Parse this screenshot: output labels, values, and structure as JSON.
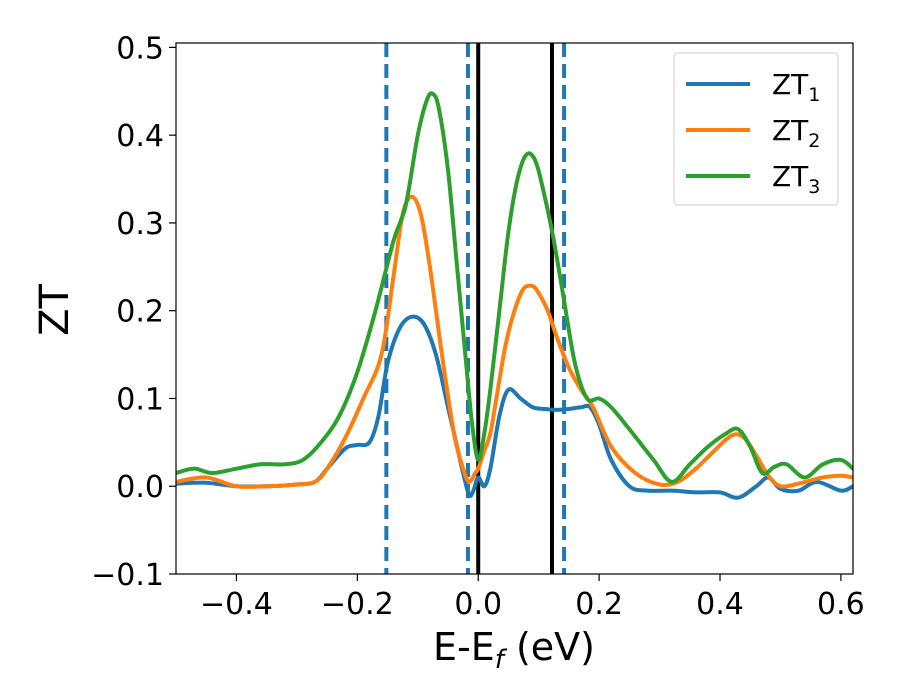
{
  "chart_data": {
    "type": "line",
    "xlabel_main": "E-E",
    "xlabel_sub": "f",
    "xlabel_tail": " (eV)",
    "ylabel": "ZT",
    "xlim": [
      -0.5,
      0.62
    ],
    "ylim": [
      -0.1,
      0.505
    ],
    "xticks": [
      -0.4,
      -0.2,
      0.0,
      0.2,
      0.4,
      0.6
    ],
    "xtick_labels": [
      "−0.4",
      "−0.2",
      "0.0",
      "0.2",
      "0.4",
      "0.6"
    ],
    "yticks": [
      -0.1,
      0.0,
      0.1,
      0.2,
      0.3,
      0.4,
      0.5
    ],
    "ytick_labels": [
      "−0.1",
      "0.0",
      "0.1",
      "0.2",
      "0.3",
      "0.4",
      "0.5"
    ],
    "grid": false,
    "legend_position": "top-right",
    "vertical_lines": [
      {
        "x": -0.152,
        "style": "dashed",
        "color": "#1f77b4"
      },
      {
        "x": -0.017,
        "style": "dashed",
        "color": "#1f77b4"
      },
      {
        "x": 0.142,
        "style": "dashed",
        "color": "#1f77b4"
      },
      {
        "x": 0.0,
        "style": "solid",
        "color": "#000000"
      },
      {
        "x": 0.122,
        "style": "solid",
        "color": "#000000"
      }
    ],
    "series": [
      {
        "name_main": "ZT",
        "name_sub": "1",
        "color": "#1f77b4",
        "x": [
          -0.5,
          -0.45,
          -0.4,
          -0.35,
          -0.3,
          -0.27,
          -0.25,
          -0.22,
          -0.2,
          -0.18,
          -0.165,
          -0.15,
          -0.13,
          -0.11,
          -0.09,
          -0.07,
          -0.05,
          -0.035,
          -0.025,
          -0.015,
          -0.008,
          0.0,
          0.01,
          0.02,
          0.035,
          0.05,
          0.07,
          0.09,
          0.11,
          0.13,
          0.15,
          0.17,
          0.185,
          0.2,
          0.22,
          0.25,
          0.28,
          0.32,
          0.36,
          0.4,
          0.43,
          0.46,
          0.48,
          0.5,
          0.53,
          0.56,
          0.6,
          0.62
        ],
        "y": [
          0.003,
          0.004,
          0.0,
          0.0,
          0.002,
          0.005,
          0.02,
          0.043,
          0.047,
          0.05,
          0.08,
          0.14,
          0.18,
          0.193,
          0.185,
          0.15,
          0.09,
          0.045,
          0.015,
          -0.01,
          -0.005,
          0.01,
          0.0,
          0.02,
          0.08,
          0.11,
          0.1,
          0.09,
          0.088,
          0.087,
          0.088,
          0.09,
          0.09,
          0.07,
          0.03,
          0.0,
          -0.005,
          -0.005,
          -0.007,
          -0.007,
          -0.013,
          0.0,
          0.01,
          -0.003,
          -0.005,
          0.005,
          -0.005,
          0.0
        ]
      },
      {
        "name_main": "ZT",
        "name_sub": "2",
        "color": "#ff7f0e",
        "x": [
          -0.5,
          -0.45,
          -0.4,
          -0.35,
          -0.3,
          -0.27,
          -0.25,
          -0.22,
          -0.19,
          -0.16,
          -0.14,
          -0.125,
          -0.11,
          -0.095,
          -0.08,
          -0.06,
          -0.04,
          -0.025,
          -0.015,
          -0.005,
          0.0,
          0.01,
          0.02,
          0.03,
          0.045,
          0.06,
          0.075,
          0.09,
          0.1,
          0.115,
          0.13,
          0.15,
          0.17,
          0.19,
          0.22,
          0.26,
          0.3,
          0.33,
          0.36,
          0.39,
          0.42,
          0.44,
          0.46,
          0.48,
          0.5,
          0.53,
          0.57,
          0.6,
          0.62
        ],
        "y": [
          0.005,
          0.01,
          0.0,
          0.0,
          0.002,
          0.005,
          0.02,
          0.055,
          0.1,
          0.15,
          0.24,
          0.31,
          0.33,
          0.31,
          0.25,
          0.15,
          0.06,
          0.02,
          0.005,
          0.015,
          0.02,
          0.04,
          0.06,
          0.1,
          0.16,
          0.2,
          0.225,
          0.228,
          0.22,
          0.2,
          0.17,
          0.135,
          0.11,
          0.09,
          0.045,
          0.015,
          0.002,
          0.005,
          0.02,
          0.04,
          0.058,
          0.055,
          0.035,
          0.012,
          0.0,
          0.003,
          0.01,
          0.012,
          0.01
        ]
      },
      {
        "name_main": "ZT",
        "name_sub": "3",
        "color": "#2ca02c",
        "x": [
          -0.5,
          -0.47,
          -0.44,
          -0.4,
          -0.36,
          -0.32,
          -0.29,
          -0.26,
          -0.23,
          -0.2,
          -0.17,
          -0.14,
          -0.12,
          -0.1,
          -0.085,
          -0.075,
          -0.065,
          -0.05,
          -0.035,
          -0.02,
          -0.01,
          0.0,
          0.01,
          0.02,
          0.035,
          0.05,
          0.065,
          0.08,
          0.095,
          0.11,
          0.125,
          0.14,
          0.16,
          0.18,
          0.2,
          0.22,
          0.25,
          0.29,
          0.32,
          0.35,
          0.38,
          0.41,
          0.43,
          0.45,
          0.47,
          0.49,
          0.51,
          0.54,
          0.57,
          0.6,
          0.62
        ],
        "y": [
          0.015,
          0.02,
          0.015,
          0.02,
          0.025,
          0.025,
          0.03,
          0.05,
          0.08,
          0.13,
          0.2,
          0.28,
          0.32,
          0.4,
          0.44,
          0.447,
          0.43,
          0.36,
          0.25,
          0.14,
          0.07,
          0.03,
          0.06,
          0.11,
          0.2,
          0.29,
          0.35,
          0.378,
          0.37,
          0.33,
          0.28,
          0.22,
          0.14,
          0.1,
          0.1,
          0.09,
          0.065,
          0.03,
          0.005,
          0.025,
          0.045,
          0.06,
          0.065,
          0.045,
          0.015,
          0.022,
          0.025,
          0.01,
          0.025,
          0.03,
          0.02
        ]
      }
    ]
  }
}
